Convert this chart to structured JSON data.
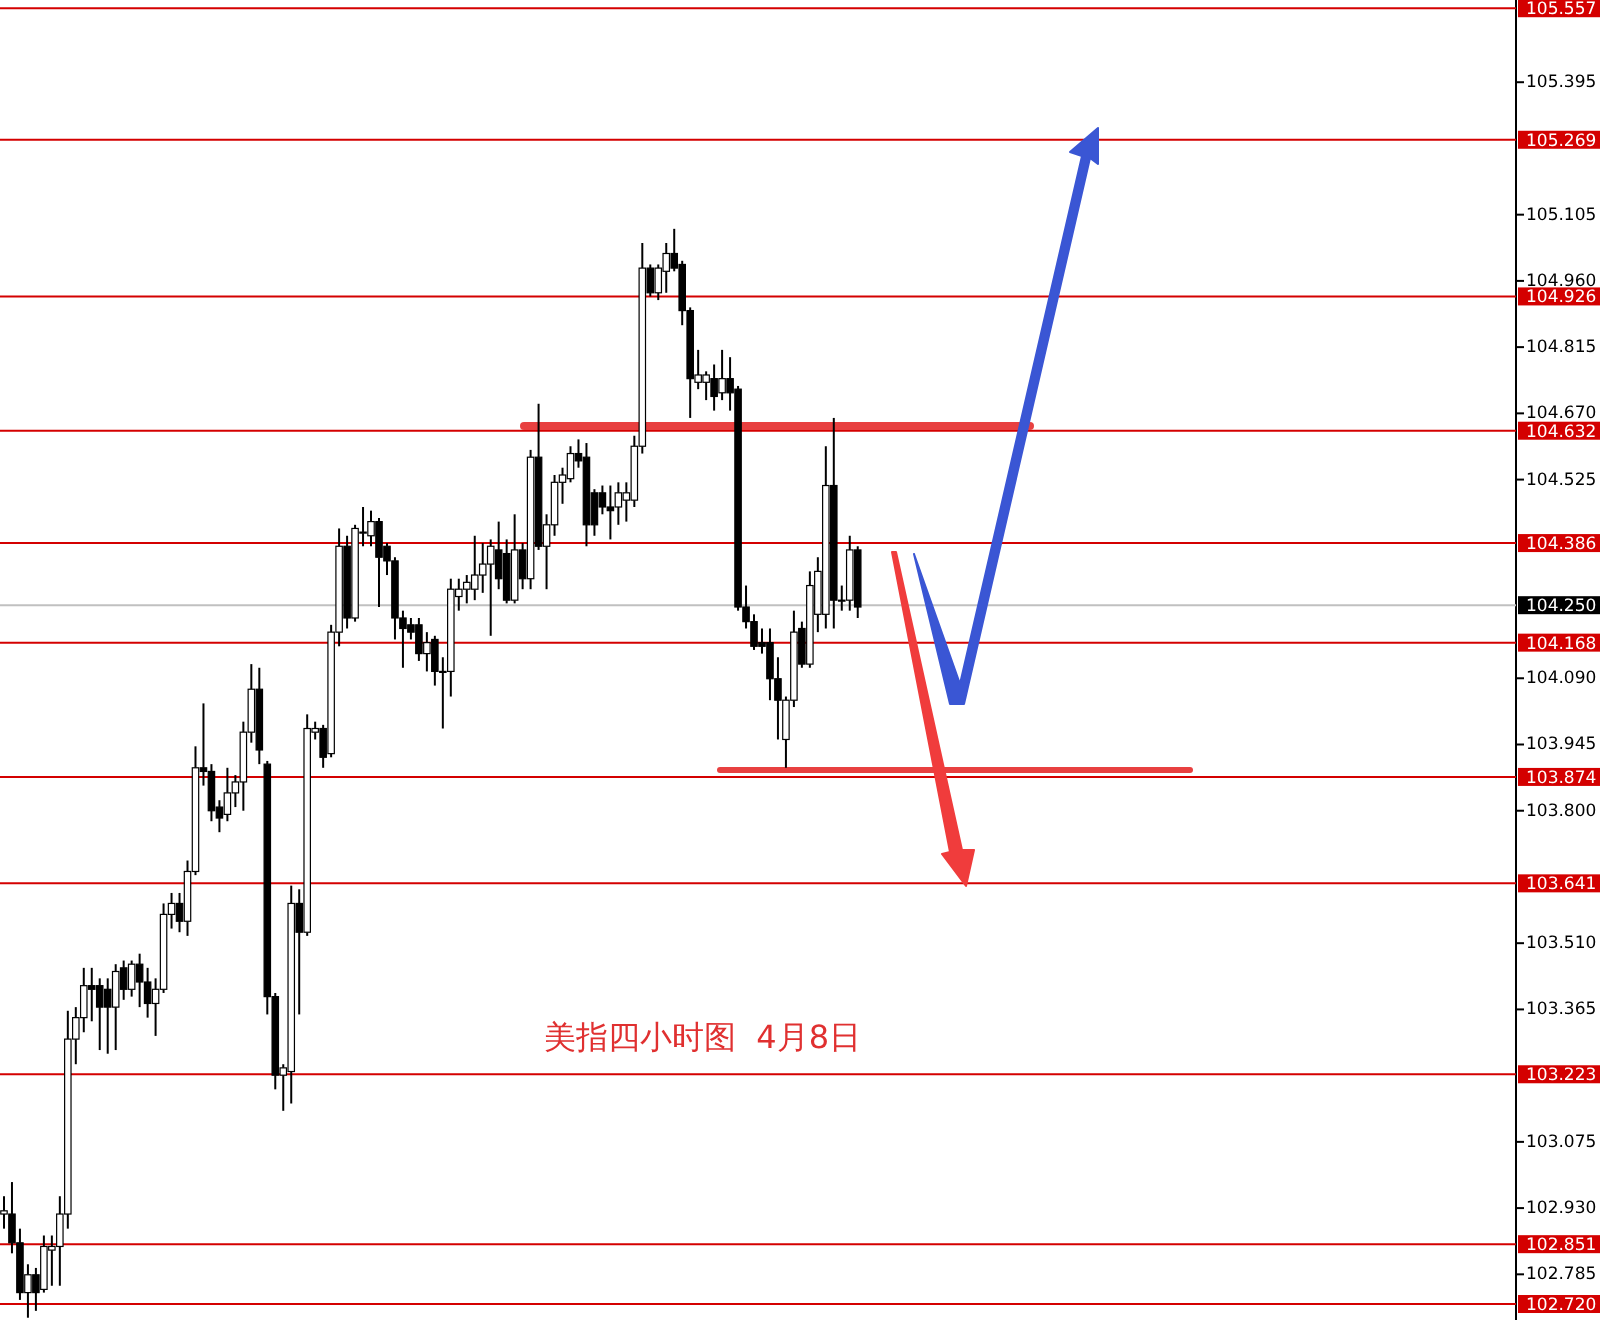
{
  "chart_data": {
    "type": "candlestick",
    "categories": [
      null,
      null,
      null,
      null,
      null,
      null,
      null,
      null,
      null,
      null,
      null,
      null,
      null,
      null,
      null,
      null,
      null,
      null,
      null,
      null,
      null,
      null,
      null,
      null,
      null,
      null,
      null,
      null,
      null,
      null,
      null,
      null,
      null,
      null,
      null,
      null,
      null,
      null,
      null,
      null,
      null,
      null,
      null,
      null,
      null,
      null,
      null,
      null,
      null,
      null,
      null,
      null,
      null,
      null,
      null,
      null,
      null,
      null,
      null,
      null,
      null,
      null,
      null,
      null,
      null,
      null,
      null,
      null,
      null,
      null,
      null,
      null,
      null,
      null,
      null,
      null,
      null,
      null,
      null,
      null,
      null,
      null,
      null,
      null,
      null,
      null,
      null,
      null,
      null,
      null,
      null,
      null,
      null,
      null,
      null,
      null,
      null,
      null,
      null,
      null,
      null,
      null,
      null,
      null,
      null,
      null,
      null,
      null,
      null,
      null,
      null,
      null,
      null,
      null,
      null,
      null,
      null,
      null,
      null,
      null,
      null,
      null,
      null,
      null,
      null,
      null,
      null,
      null,
      null,
      null,
      null,
      null,
      null,
      null,
      null,
      null,
      null,
      null,
      null,
      null,
      null,
      null,
      null,
      null,
      null,
      null,
      null,
      null,
      null,
      null,
      null,
      null,
      null,
      null,
      null,
      null,
      null,
      null,
      null,
      null,
      null,
      null,
      null,
      null,
      null,
      null,
      null,
      null,
      null,
      null,
      null,
      null,
      null,
      null,
      null,
      null,
      null,
      null,
      null,
      null,
      null,
      null,
      null,
      null,
      null,
      null,
      null,
      null,
      null,
      null
    ],
    "ohlc": [
      [
        102.917,
        102.956,
        102.885,
        102.924
      ],
      [
        102.917,
        102.987,
        102.831,
        102.854
      ],
      [
        102.854,
        102.885,
        102.729,
        102.745
      ],
      [
        102.745,
        102.807,
        102.69,
        102.784
      ],
      [
        102.784,
        102.799,
        102.705,
        102.745
      ],
      [
        102.752,
        102.87,
        102.745,
        102.846
      ],
      [
        102.838,
        102.87,
        102.76,
        102.846
      ],
      [
        102.846,
        102.956,
        102.76,
        102.917
      ],
      [
        102.917,
        103.362,
        102.885,
        103.3
      ],
      [
        103.3,
        103.37,
        103.245,
        103.347
      ],
      [
        103.347,
        103.456,
        103.315,
        103.417
      ],
      [
        103.417,
        103.456,
        103.339,
        103.409
      ],
      [
        103.417,
        103.433,
        103.276,
        103.37
      ],
      [
        103.409,
        103.433,
        103.268,
        103.37
      ],
      [
        103.37,
        103.464,
        103.276,
        103.448
      ],
      [
        103.456,
        103.472,
        103.386,
        103.409
      ],
      [
        103.409,
        103.472,
        103.393,
        103.464
      ],
      [
        103.464,
        103.487,
        103.37,
        103.425
      ],
      [
        103.425,
        103.456,
        103.347,
        103.378
      ],
      [
        103.378,
        103.433,
        103.307,
        103.409
      ],
      [
        103.409,
        103.597,
        103.401,
        103.573
      ],
      [
        103.573,
        103.62,
        103.542,
        103.597
      ],
      [
        103.597,
        103.62,
        103.534,
        103.558
      ],
      [
        103.558,
        103.691,
        103.526,
        103.667
      ],
      [
        103.667,
        103.941,
        103.659,
        103.894
      ],
      [
        103.894,
        104.035,
        103.855,
        103.886
      ],
      [
        103.886,
        103.902,
        103.777,
        103.8
      ],
      [
        103.808,
        103.823,
        103.753,
        103.784
      ],
      [
        103.792,
        103.894,
        103.777,
        103.839
      ],
      [
        103.839,
        103.878,
        103.808,
        103.863
      ],
      [
        103.863,
        103.995,
        103.8,
        103.972
      ],
      [
        103.972,
        104.121,
        103.949,
        104.066
      ],
      [
        104.066,
        104.113,
        103.902,
        103.933
      ],
      [
        103.902,
        103.909,
        103.354,
        103.393
      ],
      [
        103.393,
        103.401,
        103.19,
        103.221
      ],
      [
        103.221,
        103.245,
        103.143,
        103.237
      ],
      [
        103.229,
        103.636,
        103.159,
        103.597
      ],
      [
        103.597,
        103.628,
        103.354,
        103.534
      ],
      [
        103.534,
        104.011,
        103.526,
        103.98
      ],
      [
        103.972,
        103.995,
        103.956,
        103.98
      ],
      [
        103.98,
        103.988,
        103.894,
        103.917
      ],
      [
        103.925,
        104.207,
        103.917,
        104.191
      ],
      [
        104.191,
        104.418,
        104.16,
        104.379
      ],
      [
        104.379,
        104.402,
        104.199,
        104.222
      ],
      [
        104.222,
        104.426,
        104.214,
        104.418
      ],
      [
        104.41,
        104.465,
        104.379,
        104.41
      ],
      [
        104.402,
        104.457,
        104.379,
        104.433
      ],
      [
        104.433,
        104.441,
        104.246,
        104.355
      ],
      [
        104.379,
        104.386,
        104.316,
        104.347
      ],
      [
        104.347,
        104.355,
        104.175,
        104.222
      ],
      [
        104.222,
        104.238,
        104.113,
        104.199
      ],
      [
        104.207,
        104.222,
        104.175,
        104.191
      ],
      [
        104.207,
        104.222,
        104.128,
        104.144
      ],
      [
        104.144,
        104.191,
        104.105,
        104.168
      ],
      [
        104.175,
        104.183,
        104.074,
        104.105
      ],
      [
        104.105,
        104.136,
        103.98,
        104.105
      ],
      [
        104.105,
        104.308,
        104.05,
        104.285
      ],
      [
        104.269,
        104.308,
        104.238,
        104.285
      ],
      [
        104.285,
        104.316,
        104.254,
        104.3
      ],
      [
        104.285,
        104.402,
        104.261,
        104.316
      ],
      [
        104.316,
        104.386,
        104.277,
        104.34
      ],
      [
        104.34,
        104.394,
        104.183,
        104.379
      ],
      [
        104.371,
        104.433,
        104.285,
        104.308
      ],
      [
        104.363,
        104.394,
        104.254,
        104.261
      ],
      [
        104.261,
        104.449,
        104.254,
        104.371
      ],
      [
        104.371,
        104.386,
        104.285,
        104.308
      ],
      [
        104.308,
        104.59,
        104.285,
        104.574
      ],
      [
        104.574,
        104.691,
        104.371,
        104.379
      ],
      [
        104.379,
        104.449,
        104.285,
        104.426
      ],
      [
        104.426,
        104.535,
        104.402,
        104.519
      ],
      [
        104.519,
        104.551,
        104.472,
        104.535
      ],
      [
        104.527,
        104.598,
        104.519,
        104.582
      ],
      [
        104.582,
        104.613,
        104.551,
        104.566
      ],
      [
        104.574,
        104.605,
        104.379,
        104.426
      ],
      [
        104.496,
        104.504,
        104.402,
        104.426
      ],
      [
        104.496,
        104.512,
        104.449,
        104.465
      ],
      [
        104.465,
        104.512,
        104.394,
        104.457
      ],
      [
        104.465,
        104.519,
        104.426,
        104.496
      ],
      [
        104.48,
        104.519,
        104.433,
        104.496
      ],
      [
        104.48,
        104.621,
        104.465,
        104.598
      ],
      [
        104.598,
        105.043,
        104.582,
        104.988
      ],
      [
        104.988,
        104.996,
        104.926,
        104.934
      ],
      [
        104.934,
        104.996,
        104.918,
        104.988
      ],
      [
        104.981,
        105.043,
        104.934,
        105.02
      ],
      [
        105.02,
        105.074,
        104.981,
        104.988
      ],
      [
        104.996,
        105.004,
        104.863,
        104.895
      ],
      [
        104.895,
        104.902,
        104.66,
        104.746
      ],
      [
        104.738,
        104.809,
        104.723,
        104.754
      ],
      [
        104.738,
        104.762,
        104.699,
        104.754
      ],
      [
        104.746,
        104.777,
        104.676,
        104.707
      ],
      [
        104.715,
        104.809,
        104.699,
        104.746
      ],
      [
        104.746,
        104.793,
        104.676,
        104.715
      ],
      [
        104.723,
        104.73,
        104.238,
        104.246
      ],
      [
        104.246,
        104.293,
        104.199,
        104.214
      ],
      [
        104.214,
        104.23,
        104.152,
        104.16
      ],
      [
        104.168,
        104.199,
        104.144,
        104.16
      ],
      [
        104.168,
        104.199,
        104.042,
        104.089
      ],
      [
        104.089,
        104.136,
        103.956,
        104.042
      ],
      [
        103.956,
        104.05,
        103.894,
        104.042
      ],
      [
        104.042,
        104.238,
        104.027,
        104.191
      ],
      [
        104.199,
        104.214,
        104.113,
        104.121
      ],
      [
        104.121,
        104.324,
        104.113,
        104.293
      ],
      [
        104.23,
        104.355,
        104.191,
        104.324
      ],
      [
        104.23,
        104.598,
        104.199,
        104.512
      ],
      [
        104.512,
        104.66,
        104.199,
        104.261
      ],
      [
        104.261,
        104.293,
        104.238,
        104.261
      ],
      [
        104.261,
        104.402,
        104.238,
        104.371
      ],
      [
        104.371,
        104.379,
        104.222,
        104.246
      ],
      null,
      null,
      null,
      null,
      null,
      null,
      null,
      null,
      null,
      null,
      null,
      null,
      null,
      null,
      null,
      null,
      null,
      null,
      null,
      null,
      null,
      null,
      null,
      null,
      null,
      null,
      null,
      null,
      null,
      null,
      null,
      null,
      null,
      null,
      null,
      null,
      null,
      null,
      null,
      null,
      null,
      null,
      null,
      null,
      null,
      null,
      null,
      null,
      null,
      null,
      null,
      null,
      null,
      null,
      null,
      null,
      null,
      null,
      null,
      null,
      null,
      null,
      null,
      null,
      null,
      null,
      null,
      null,
      null,
      null,
      null,
      null,
      null,
      null,
      null,
      null,
      null,
      null,
      null,
      null,
      null,
      null
    ],
    "ylim": [
      102.685,
      105.575
    ],
    "yticks": [
      105.395,
      105.105,
      {
        "value": 104.96,
        "label": "104.960"
      },
      104.815,
      {
        "value": 104.67,
        "label": "104.670"
      },
      104.525,
      {
        "value": 104.09,
        "label": "104.090"
      },
      103.945,
      {
        "value": 103.8,
        "label": "103.800"
      },
      {
        "value": 103.51,
        "label": "103.510"
      },
      103.365,
      103.075,
      {
        "value": 102.93,
        "label": "102.930"
      },
      102.785
    ],
    "ref_lines": [
      {
        "axis": "y",
        "value": 105.557,
        "label": "105.557",
        "color": "#d40000"
      },
      {
        "axis": "y",
        "value": 105.269,
        "label": "105.269",
        "color": "#d40000"
      },
      {
        "axis": "y",
        "value": 104.926,
        "label": "104.926",
        "color": "#d40000"
      },
      {
        "axis": "y",
        "value": 104.632,
        "label": "104.632",
        "color": "#d40000"
      },
      {
        "axis": "y",
        "value": 104.386,
        "label": "104.386",
        "color": "#d40000"
      },
      {
        "axis": "y",
        "value": 104.25,
        "label": "104.250",
        "color": "#c0c0c0"
      },
      {
        "axis": "y",
        "value": 104.168,
        "label": "104.168",
        "color": "#d40000"
      },
      {
        "axis": "y",
        "value": 103.874,
        "label": "103.874",
        "color": "#d40000"
      },
      {
        "axis": "y",
        "value": 103.641,
        "label": "103.641",
        "color": "#d40000"
      },
      {
        "axis": "y",
        "value": 103.223,
        "label": "103.223",
        "color": "#d40000"
      },
      {
        "axis": "y",
        "value": 102.851,
        "label": "102.851",
        "color": "#d40000"
      },
      {
        "axis": "y",
        "value": 102.72,
        "label": "102.720",
        "color": "#d40000"
      }
    ],
    "annotations": [
      "美指四小时图  4月8日"
    ]
  }
}
